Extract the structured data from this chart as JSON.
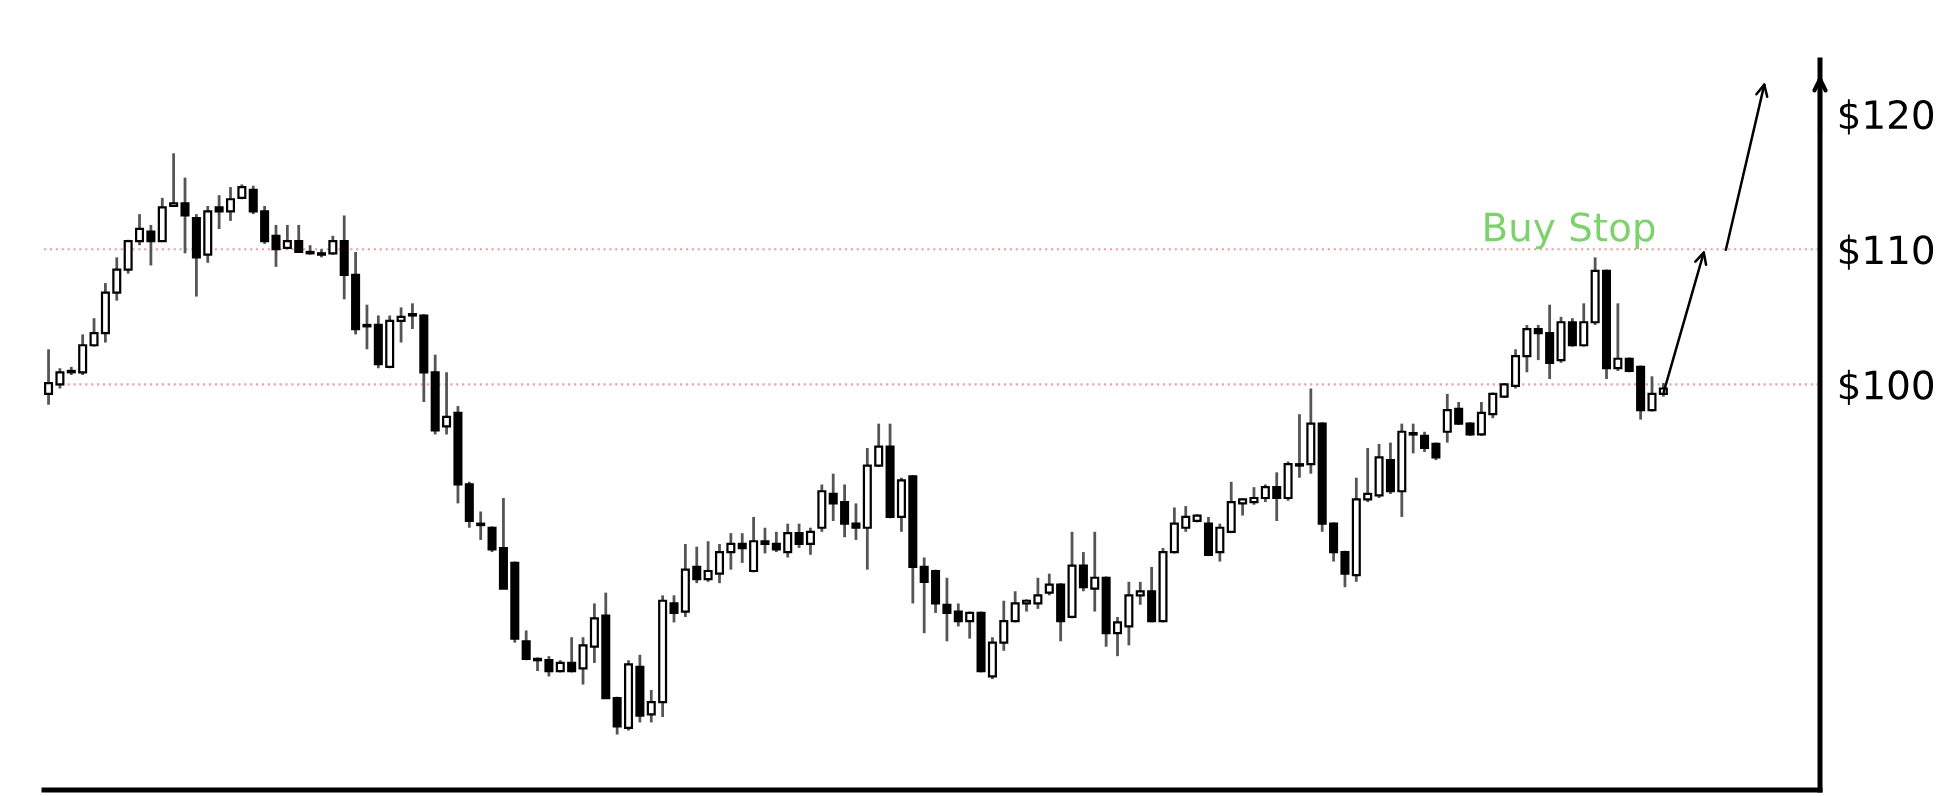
{
  "chart_data": {
    "type": "candlestick",
    "categories": [
      null,
      null,
      null,
      null,
      null,
      null,
      null,
      null,
      null,
      null,
      null,
      null,
      null,
      null,
      null,
      null,
      null,
      null,
      null,
      null,
      null,
      null,
      null,
      null,
      null,
      null,
      null,
      null,
      null,
      null,
      null,
      null,
      null,
      null,
      null,
      null,
      null,
      null,
      null,
      null,
      null,
      null,
      null,
      null,
      null,
      null,
      null,
      null,
      null,
      null,
      null,
      null,
      null,
      null,
      null,
      null,
      null,
      null,
      null,
      null,
      null,
      null,
      null,
      null,
      null,
      null,
      null,
      null,
      null,
      null,
      null,
      null,
      null,
      null,
      null,
      null,
      null,
      null,
      null,
      null,
      null,
      null,
      null,
      null,
      null,
      null,
      null,
      null,
      null,
      null,
      null,
      null,
      null,
      null,
      null,
      null,
      null,
      null,
      null,
      null,
      null,
      null,
      null,
      null,
      null,
      null,
      null,
      null,
      null,
      null,
      null,
      null,
      null,
      null,
      null,
      null,
      null,
      null,
      null,
      null,
      null,
      null,
      null,
      null,
      null,
      null,
      null,
      null,
      null,
      null,
      null,
      null,
      null,
      null,
      null,
      null,
      null,
      null,
      null,
      null,
      null,
      null,
      null
    ],
    "ohlc": [
      [
        99.3,
        102.6,
        98.5,
        100.1
      ],
      [
        100.0,
        101.2,
        99.7,
        100.9
      ],
      [
        100.9,
        101.3,
        100.7,
        101.0
      ],
      [
        100.9,
        103.7,
        100.7,
        102.9
      ],
      [
        102.9,
        104.9,
        102.8,
        103.8
      ],
      [
        103.8,
        107.5,
        103.1,
        106.8
      ],
      [
        106.8,
        109.4,
        106.2,
        108.5
      ],
      [
        108.5,
        110.7,
        108.2,
        110.6
      ],
      [
        110.6,
        112.6,
        110.3,
        111.5
      ],
      [
        111.3,
        111.8,
        108.8,
        110.6
      ],
      [
        110.6,
        113.8,
        110.6,
        113.1
      ],
      [
        113.2,
        117.1,
        113.2,
        113.4
      ],
      [
        113.4,
        115.3,
        109.7,
        112.5
      ],
      [
        112.3,
        112.6,
        106.5,
        109.4
      ],
      [
        109.6,
        113.2,
        109.0,
        112.8
      ],
      [
        113.1,
        114.0,
        111.5,
        112.8
      ],
      [
        112.8,
        114.6,
        112.1,
        113.7
      ],
      [
        113.8,
        114.8,
        113.7,
        114.6
      ],
      [
        114.4,
        114.7,
        112.6,
        112.8
      ],
      [
        112.8,
        113.2,
        110.4,
        110.6
      ],
      [
        111.0,
        111.8,
        108.7,
        110.0
      ],
      [
        110.1,
        111.8,
        110.0,
        110.6
      ],
      [
        110.6,
        111.8,
        109.8,
        109.8
      ],
      [
        109.8,
        110.3,
        109.6,
        109.7
      ],
      [
        109.7,
        110.0,
        109.4,
        109.6
      ],
      [
        109.7,
        111.0,
        109.6,
        110.6
      ],
      [
        110.6,
        112.5,
        106.3,
        108.1
      ],
      [
        108.1,
        109.8,
        103.7,
        104.1
      ],
      [
        104.4,
        105.9,
        102.6,
        104.3
      ],
      [
        104.4,
        105.1,
        101.2,
        101.5
      ],
      [
        101.3,
        105.1,
        101.2,
        104.7
      ],
      [
        104.7,
        105.7,
        103.1,
        105.0
      ],
      [
        105.1,
        106.0,
        104.1,
        105.2
      ],
      [
        105.1,
        105.2,
        98.7,
        100.9
      ],
      [
        100.9,
        102.2,
        96.3,
        96.6
      ],
      [
        96.9,
        100.9,
        96.3,
        97.6
      ],
      [
        97.9,
        98.4,
        91.2,
        92.6
      ],
      [
        92.6,
        92.8,
        89.4,
        89.9
      ],
      [
        89.7,
        90.6,
        88.5,
        89.6
      ],
      [
        89.4,
        89.5,
        87.6,
        87.8
      ],
      [
        87.9,
        91.6,
        84.9,
        84.9
      ],
      [
        86.8,
        86.9,
        80.9,
        81.2
      ],
      [
        81.0,
        81.8,
        79.6,
        79.7
      ],
      [
        79.7,
        79.8,
        78.8,
        79.6
      ],
      [
        79.6,
        79.9,
        78.4,
        78.8
      ],
      [
        78.8,
        79.6,
        78.7,
        79.4
      ],
      [
        79.4,
        81.3,
        78.7,
        78.8
      ],
      [
        79.0,
        81.3,
        77.8,
        80.7
      ],
      [
        80.6,
        83.8,
        79.4,
        82.7
      ],
      [
        82.9,
        84.6,
        76.8,
        76.8
      ],
      [
        76.8,
        76.9,
        74.1,
        74.7
      ],
      [
        74.6,
        79.6,
        74.4,
        79.3
      ],
      [
        79.1,
        80.0,
        75.0,
        75.5
      ],
      [
        75.6,
        77.4,
        75.0,
        76.5
      ],
      [
        76.5,
        84.4,
        75.4,
        84.0
      ],
      [
        83.8,
        84.4,
        82.4,
        83.1
      ],
      [
        83.2,
        88.2,
        82.8,
        86.3
      ],
      [
        86.5,
        88.0,
        85.3,
        85.6
      ],
      [
        85.6,
        88.4,
        85.4,
        86.2
      ],
      [
        86.0,
        88.2,
        85.3,
        87.6
      ],
      [
        87.6,
        89.0,
        86.3,
        88.2
      ],
      [
        88.2,
        89.0,
        86.8,
        87.9
      ],
      [
        86.2,
        90.2,
        86.1,
        88.4
      ],
      [
        88.4,
        89.4,
        87.5,
        88.2
      ],
      [
        88.2,
        89.1,
        87.6,
        87.8
      ],
      [
        87.6,
        89.7,
        87.2,
        89.0
      ],
      [
        89.0,
        89.7,
        87.9,
        88.2
      ],
      [
        88.2,
        89.4,
        87.4,
        89.1
      ],
      [
        89.4,
        92.6,
        89.1,
        92.1
      ],
      [
        91.9,
        93.4,
        89.9,
        91.2
      ],
      [
        91.3,
        92.6,
        88.7,
        89.7
      ],
      [
        89.7,
        91.2,
        88.5,
        89.4
      ],
      [
        89.4,
        95.3,
        86.3,
        94.0
      ],
      [
        94.0,
        97.1,
        93.9,
        95.4
      ],
      [
        95.4,
        97.1,
        90.1,
        90.2
      ],
      [
        90.2,
        93.1,
        89.1,
        92.9
      ],
      [
        93.2,
        93.3,
        83.8,
        86.5
      ],
      [
        86.5,
        87.2,
        81.6,
        85.4
      ],
      [
        86.2,
        86.3,
        83.1,
        83.8
      ],
      [
        83.7,
        85.7,
        81.0,
        83.1
      ],
      [
        83.2,
        83.8,
        82.1,
        82.5
      ],
      [
        82.5,
        83.2,
        81.2,
        83.1
      ],
      [
        83.1,
        83.2,
        78.7,
        78.8
      ],
      [
        78.4,
        81.3,
        78.2,
        80.9
      ],
      [
        80.9,
        84.0,
        80.3,
        82.5
      ],
      [
        82.5,
        84.7,
        82.4,
        83.8
      ],
      [
        83.8,
        84.1,
        83.2,
        84.0
      ],
      [
        83.8,
        85.7,
        83.4,
        84.4
      ],
      [
        84.6,
        86.0,
        84.4,
        85.2
      ],
      [
        85.2,
        85.3,
        81.0,
        82.5
      ],
      [
        82.8,
        89.1,
        82.7,
        86.6
      ],
      [
        86.6,
        87.6,
        84.7,
        85.0
      ],
      [
        84.9,
        89.1,
        83.2,
        85.7
      ],
      [
        85.7,
        85.8,
        80.6,
        81.6
      ],
      [
        81.6,
        82.8,
        79.9,
        82.4
      ],
      [
        82.1,
        85.4,
        80.7,
        84.4
      ],
      [
        84.4,
        85.4,
        83.7,
        84.7
      ],
      [
        84.7,
        86.5,
        82.4,
        82.5
      ],
      [
        82.5,
        87.9,
        82.4,
        87.6
      ],
      [
        87.6,
        90.9,
        87.5,
        89.7
      ],
      [
        89.4,
        91.0,
        89.1,
        90.2
      ],
      [
        89.9,
        90.4,
        89.8,
        90.3
      ],
      [
        89.7,
        90.2,
        87.3,
        87.4
      ],
      [
        87.6,
        89.7,
        86.9,
        89.4
      ],
      [
        89.1,
        92.8,
        89.0,
        91.3
      ],
      [
        91.2,
        91.6,
        90.3,
        91.5
      ],
      [
        91.3,
        92.4,
        91.1,
        91.6
      ],
      [
        91.6,
        92.6,
        91.3,
        92.4
      ],
      [
        92.4,
        93.5,
        89.9,
        91.6
      ],
      [
        91.6,
        94.3,
        91.4,
        94.1
      ],
      [
        94.1,
        97.8,
        93.1,
        94.0
      ],
      [
        94.1,
        99.7,
        93.4,
        97.1
      ],
      [
        97.1,
        97.2,
        89.1,
        89.7
      ],
      [
        89.7,
        89.8,
        86.9,
        87.6
      ],
      [
        87.6,
        87.7,
        85.0,
        86.0
      ],
      [
        85.9,
        93.1,
        85.4,
        91.5
      ],
      [
        91.5,
        95.3,
        91.3,
        91.9
      ],
      [
        91.8,
        95.6,
        91.6,
        94.6
      ],
      [
        94.4,
        95.7,
        91.9,
        92.1
      ],
      [
        92.1,
        97.1,
        90.2,
        96.5
      ],
      [
        96.3,
        97.1,
        94.9,
        96.4
      ],
      [
        96.2,
        96.5,
        95.0,
        95.3
      ],
      [
        95.6,
        95.7,
        94.4,
        94.6
      ],
      [
        96.5,
        99.3,
        95.7,
        98.1
      ],
      [
        98.2,
        98.7,
        97.0,
        97.1
      ],
      [
        97.1,
        97.2,
        96.2,
        96.3
      ],
      [
        96.3,
        98.7,
        96.2,
        97.9
      ],
      [
        97.8,
        99.4,
        97.5,
        99.3
      ],
      [
        99.1,
        100.1,
        99.0,
        100.0
      ],
      [
        99.9,
        102.6,
        99.7,
        102.1
      ],
      [
        102.1,
        104.4,
        100.9,
        104.1
      ],
      [
        104.1,
        104.4,
        101.8,
        103.8
      ],
      [
        103.8,
        105.9,
        100.4,
        101.6
      ],
      [
        101.8,
        105.0,
        101.6,
        104.6
      ],
      [
        104.6,
        104.9,
        102.8,
        102.9
      ],
      [
        102.9,
        106.0,
        102.8,
        104.6
      ],
      [
        104.6,
        109.4,
        104.4,
        108.4
      ],
      [
        108.4,
        108.5,
        100.4,
        101.2
      ],
      [
        101.2,
        106.0,
        101.0,
        101.9
      ],
      [
        101.9,
        102.0,
        100.9,
        101.0
      ],
      [
        101.3,
        101.4,
        97.4,
        98.1
      ],
      [
        98.1,
        100.6,
        98.0,
        99.3
      ],
      [
        99.3,
        100.1,
        99.1,
        99.7
      ]
    ],
    "ylim": [
      70,
      124
    ],
    "yticks": [
      {
        "value": 100,
        "label": "$100"
      },
      {
        "value": 110,
        "label": "$110"
      },
      {
        "value": 120,
        "label": "$120"
      }
    ],
    "tick_labels": "y",
    "grid": false,
    "ref_lines": [
      {
        "axis": "y",
        "value": 110,
        "label": "Buy Stop",
        "color": "#e8a4a4",
        "line_style": "dotted"
      },
      {
        "axis": "y",
        "value": 100,
        "color": "#e8a4a4",
        "line_style": "dotted"
      }
    ]
  }
}
